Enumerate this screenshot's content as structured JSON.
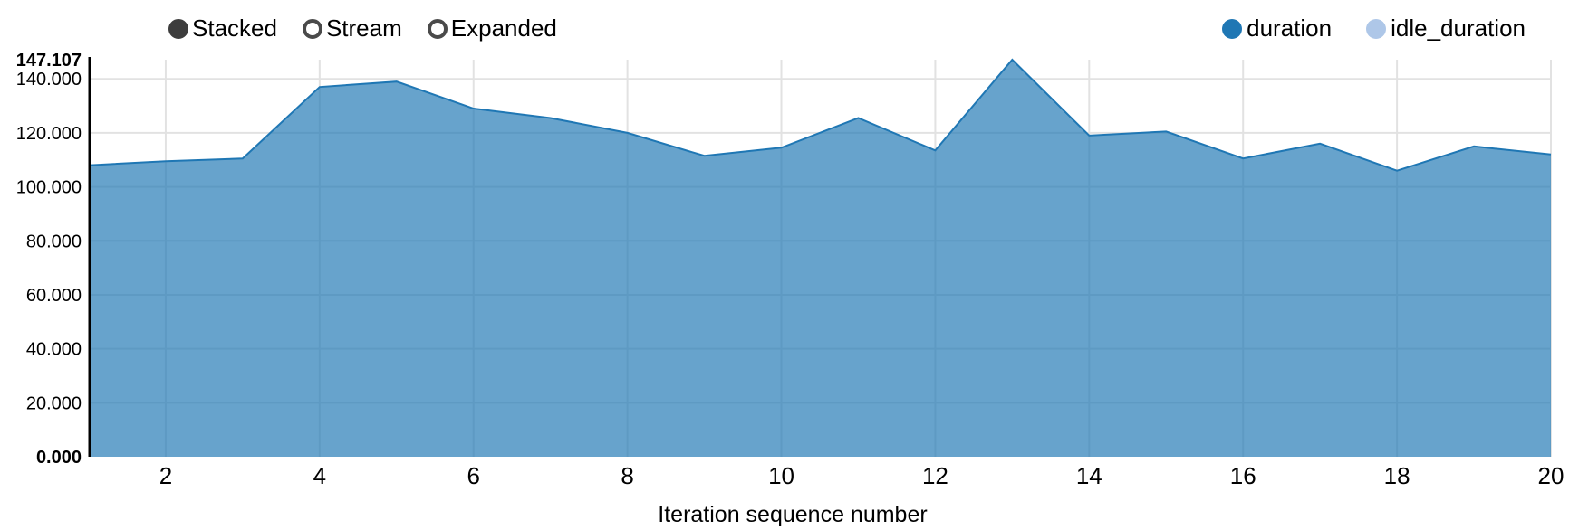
{
  "controls": {
    "modes": [
      {
        "label": "Stacked",
        "selected": true
      },
      {
        "label": "Stream",
        "selected": false
      },
      {
        "label": "Expanded",
        "selected": false
      }
    ]
  },
  "legend": {
    "items": [
      {
        "label": "duration",
        "color": "#1f77b4"
      },
      {
        "label": "idle_duration",
        "color": "#aec7e8"
      }
    ]
  },
  "chart_data": {
    "type": "area",
    "mode": "stacked",
    "title": "",
    "xlabel": "Iteration sequence number",
    "ylabel": "",
    "x": [
      1,
      2,
      3,
      4,
      5,
      6,
      7,
      8,
      9,
      10,
      11,
      12,
      13,
      14,
      15,
      16,
      17,
      18,
      19,
      20
    ],
    "series": [
      {
        "name": "duration",
        "color": "#1f77b4",
        "values": [
          108,
          109.5,
          110.5,
          137,
          139,
          129,
          125.5,
          120,
          111.5,
          114.5,
          125.5,
          113.5,
          147.107,
          119,
          120.5,
          110.5,
          116,
          106,
          115,
          112
        ]
      },
      {
        "name": "idle_duration",
        "color": "#aec7e8",
        "values": [
          0,
          0,
          0,
          0,
          0,
          0,
          0,
          0,
          0,
          0,
          0,
          0,
          0,
          0,
          0,
          0,
          0,
          0,
          0,
          0
        ]
      }
    ],
    "ylim": [
      0,
      147.107
    ],
    "y_ticks": [
      20,
      40,
      60,
      80,
      100,
      120,
      140
    ],
    "y_min_label": "0.000",
    "y_max_label": "147.107",
    "y_tick_decimals": 3,
    "x_ticks": [
      2,
      4,
      6,
      8,
      10,
      12,
      14,
      16,
      18,
      20
    ],
    "grid": true,
    "legend_position": "top-right",
    "area_fill_opacity": 0.68,
    "grid_color": "#e2e2e2",
    "axis_line_color": "#000000"
  }
}
